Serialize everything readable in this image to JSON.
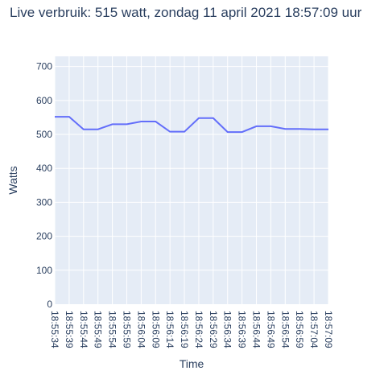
{
  "chart_data": {
    "type": "line",
    "title": "Live verbruik: 515 watt, zondag 11 april 2021 18:57:09 uur",
    "xlabel": "Time",
    "ylabel": "Watts",
    "x": [
      "18:55:34",
      "18:55:39",
      "18:55:44",
      "18:55:49",
      "18:55:54",
      "18:55:59",
      "18:56:04",
      "18:56:09",
      "18:56:14",
      "18:56:19",
      "18:56:24",
      "18:56:29",
      "18:56:34",
      "18:56:39",
      "18:56:44",
      "18:56:49",
      "18:56:54",
      "18:56:59",
      "18:57:04",
      "18:57:09"
    ],
    "values": [
      552,
      552,
      515,
      515,
      530,
      530,
      538,
      538,
      508,
      508,
      548,
      548,
      507,
      507,
      524,
      524,
      516,
      516,
      515,
      515
    ],
    "ylim": [
      0,
      730
    ],
    "yticks": [
      0,
      100,
      200,
      300,
      400,
      500,
      600,
      700
    ],
    "grid": true,
    "colors": {
      "plot_background": "#e5ecf6",
      "grid": "#ffffff",
      "line": "#636efa",
      "text": "#2a3f5f"
    }
  }
}
